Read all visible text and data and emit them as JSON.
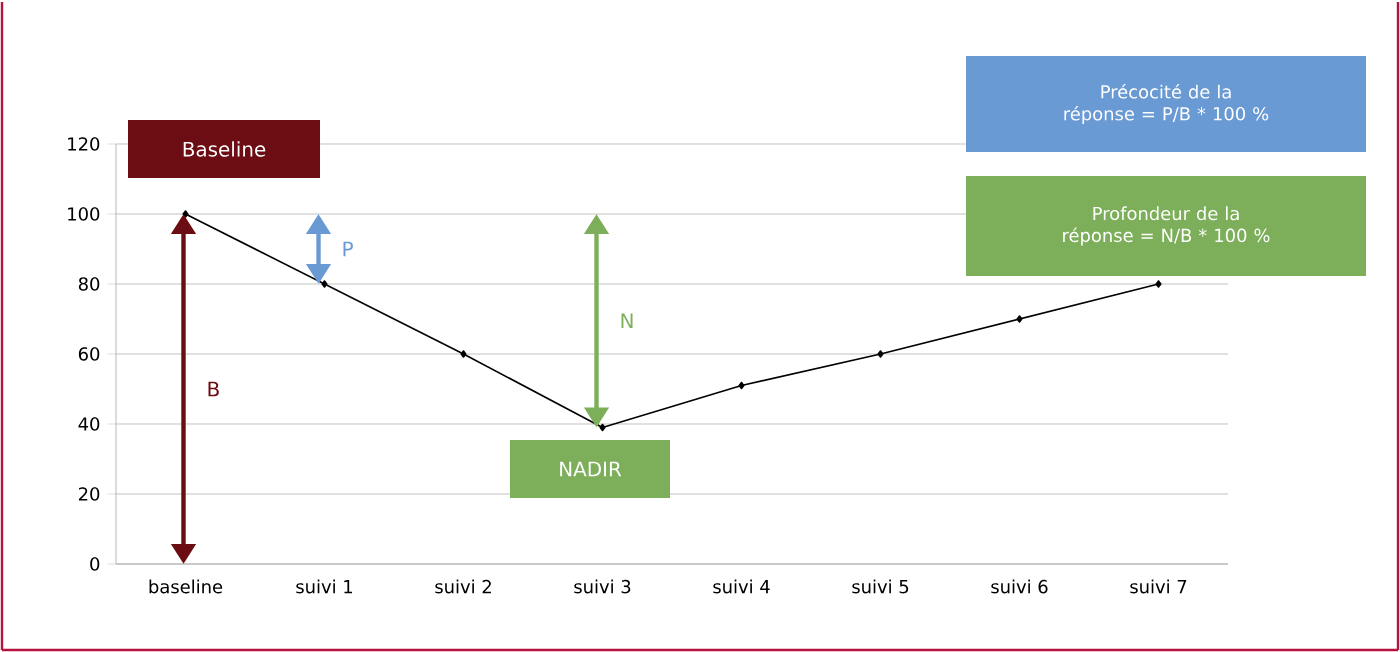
{
  "chart_data": {
    "type": "line",
    "categories": [
      "baseline",
      "suivi 1",
      "suivi 2",
      "suivi 3",
      "suivi 4",
      "suivi 5",
      "suivi 6",
      "suivi 7"
    ],
    "values": [
      100,
      80,
      60,
      39,
      51,
      60,
      70,
      80
    ],
    "color": "#000000",
    "marker": "diamond",
    "ylim": [
      0,
      120
    ],
    "yticks": [
      0,
      20,
      40,
      60,
      80,
      100,
      120
    ],
    "grid": "y",
    "annotations": [
      "Baseline",
      "NADIR",
      "B",
      "P",
      "N",
      "Précocité de la réponse = P/B * 100 %",
      "Profondeur de la réponse = N/B * 100 %"
    ]
  }
}
